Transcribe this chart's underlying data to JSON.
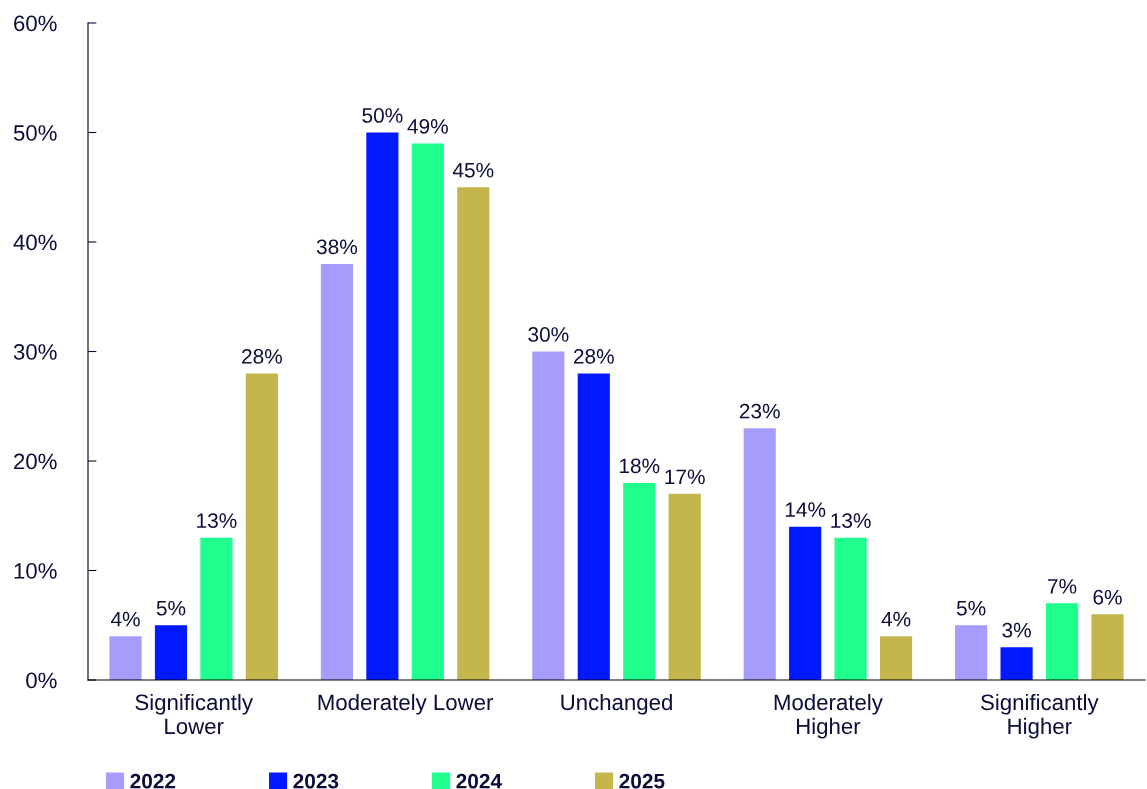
{
  "chart_data": {
    "type": "bar",
    "categories": [
      "Significantly\nLower",
      "Moderately Lower",
      "Unchanged",
      "Moderately\nHigher",
      "Significantly\nHigher"
    ],
    "series": [
      {
        "name": "2022",
        "color": "#a59cfc",
        "values": [
          4,
          38,
          30,
          23,
          5
        ]
      },
      {
        "name": "2023",
        "color": "#0019ff",
        "values": [
          5,
          50,
          28,
          14,
          3
        ]
      },
      {
        "name": "2024",
        "color": "#1eff8e",
        "values": [
          13,
          49,
          18,
          13,
          7
        ]
      },
      {
        "name": "2025",
        "color": "#c4b64c",
        "values": [
          28,
          45,
          17,
          4,
          6
        ]
      }
    ],
    "ylim": [
      0,
      60
    ],
    "yticks": [
      {
        "value": 0,
        "label": "0%"
      },
      {
        "value": 10,
        "label": "10%"
      },
      {
        "value": 20,
        "label": "20%"
      },
      {
        "value": 30,
        "label": "30%"
      },
      {
        "value": 40,
        "label": "40%"
      },
      {
        "value": 50,
        "label": "50%"
      },
      {
        "value": 60,
        "label": "60%"
      }
    ],
    "value_labels": [
      [
        "4%",
        "38%",
        "30%",
        "23%",
        "5%"
      ],
      [
        "5%",
        "50%",
        "28%",
        "14%",
        "3%"
      ],
      [
        "13%",
        "49%",
        "18%",
        "13%",
        "7%"
      ],
      [
        "28%",
        "45%",
        "17%",
        "4%",
        "6%"
      ]
    ],
    "grid": false,
    "legend": "bottom left"
  }
}
